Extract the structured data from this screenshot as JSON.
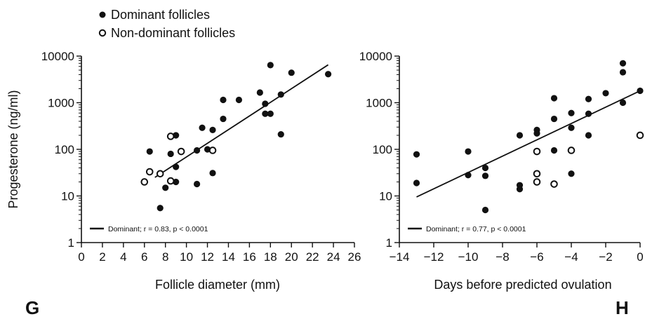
{
  "legend": {
    "dominant_label": "Dominant follicles",
    "nondominant_label": "Non-dominant follicles"
  },
  "colors": {
    "ink": "#111111",
    "background": "#ffffff"
  },
  "chart_data": [
    {
      "type": "scatter",
      "panel_label": "G",
      "ylabel": "Progesterone (ng/ml)",
      "xlabel": "Follicle diameter (mm)",
      "x_ticks": [
        0,
        2,
        4,
        6,
        8,
        10,
        12,
        14,
        16,
        18,
        20,
        22,
        24,
        26
      ],
      "x_tick_labels": [
        "0",
        "2",
        "4",
        "6",
        "8",
        "10",
        "12",
        "14",
        "16",
        "18",
        "20",
        "22",
        "24",
        "26"
      ],
      "xlim": [
        0,
        26
      ],
      "y_scale": "log",
      "ylim": [
        1,
        10000
      ],
      "y_ticks": [
        1,
        10,
        100,
        1000,
        10000
      ],
      "y_tick_labels": [
        "1",
        "10",
        "100",
        "1000",
        "10000"
      ],
      "series": [
        {
          "name": "Dominant follicles",
          "marker": "filled-circle",
          "points": [
            [
              6.5,
              90
            ],
            [
              7.5,
              5.5
            ],
            [
              8,
              15
            ],
            [
              8.5,
              80
            ],
            [
              9,
              200
            ],
            [
              9,
              42
            ],
            [
              9,
              20
            ],
            [
              11,
              95
            ],
            [
              11,
              18
            ],
            [
              11.5,
              290
            ],
            [
              12,
              100
            ],
            [
              12.5,
              260
            ],
            [
              12.5,
              31
            ],
            [
              13.5,
              1150
            ],
            [
              13.5,
              450
            ],
            [
              15,
              1150
            ],
            [
              17,
              1650
            ],
            [
              17.5,
              950
            ],
            [
              17.5,
              580
            ],
            [
              18,
              6400
            ],
            [
              18,
              580
            ],
            [
              19,
              1500
            ],
            [
              19,
              210
            ],
            [
              20,
              4400
            ],
            [
              23.5,
              4100
            ]
          ]
        },
        {
          "name": "Non-dominant follicles",
          "marker": "open-circle",
          "points": [
            [
              6,
              20
            ],
            [
              6.5,
              33
            ],
            [
              7.5,
              30
            ],
            [
              8.5,
              190
            ],
            [
              8.5,
              21
            ],
            [
              9.5,
              90
            ],
            [
              12.5,
              95
            ]
          ]
        }
      ],
      "fit_line": {
        "label": "Dominant; r = 0.83, p < 0.0001",
        "from": [
          7,
          25
        ],
        "to": [
          23.5,
          6500
        ]
      }
    },
    {
      "type": "scatter",
      "panel_label": "H",
      "ylabel": "",
      "xlabel": "Days before predicted ovulation",
      "x_ticks": [
        -14,
        -12,
        -10,
        -8,
        -6,
        -4,
        -2,
        0
      ],
      "x_tick_labels": [
        "−14",
        "−12",
        "−10",
        "−8",
        "−6",
        "−4",
        "−2",
        "0"
      ],
      "xlim": [
        -14,
        0
      ],
      "y_scale": "log",
      "ylim": [
        1,
        10000
      ],
      "y_ticks": [
        1,
        10,
        100,
        1000,
        10000
      ],
      "y_tick_labels": [
        "1",
        "10",
        "100",
        "1000",
        "10000"
      ],
      "series": [
        {
          "name": "Dominant follicles",
          "marker": "filled-circle",
          "points": [
            [
              -13,
              78
            ],
            [
              -13,
              19
            ],
            [
              -10,
              90
            ],
            [
              -10,
              28
            ],
            [
              -9,
              40
            ],
            [
              -9,
              27
            ],
            [
              -9,
              5
            ],
            [
              -7,
              200
            ],
            [
              -7,
              17
            ],
            [
              -7,
              14
            ],
            [
              -6,
              260
            ],
            [
              -6,
              220
            ],
            [
              -5,
              1250
            ],
            [
              -5,
              450
            ],
            [
              -5,
              95
            ],
            [
              -4,
              600
            ],
            [
              -4,
              290
            ],
            [
              -4,
              30
            ],
            [
              -3,
              1200
            ],
            [
              -3,
              580
            ],
            [
              -3,
              200
            ],
            [
              -2,
              1600
            ],
            [
              -1,
              7000
            ],
            [
              -1,
              4500
            ],
            [
              -1,
              1000
            ],
            [
              0,
              1800
            ]
          ]
        },
        {
          "name": "Non-dominant follicles",
          "marker": "open-circle",
          "points": [
            [
              -6,
              90
            ],
            [
              -6,
              30
            ],
            [
              -6,
              20
            ],
            [
              -5,
              18
            ],
            [
              -4,
              95
            ],
            [
              0,
              200
            ]
          ]
        }
      ],
      "fit_line": {
        "label": "Dominant; r = 0.77, p < 0.0001",
        "from": [
          -13,
          9.5
        ],
        "to": [
          0,
          1800
        ]
      }
    }
  ]
}
